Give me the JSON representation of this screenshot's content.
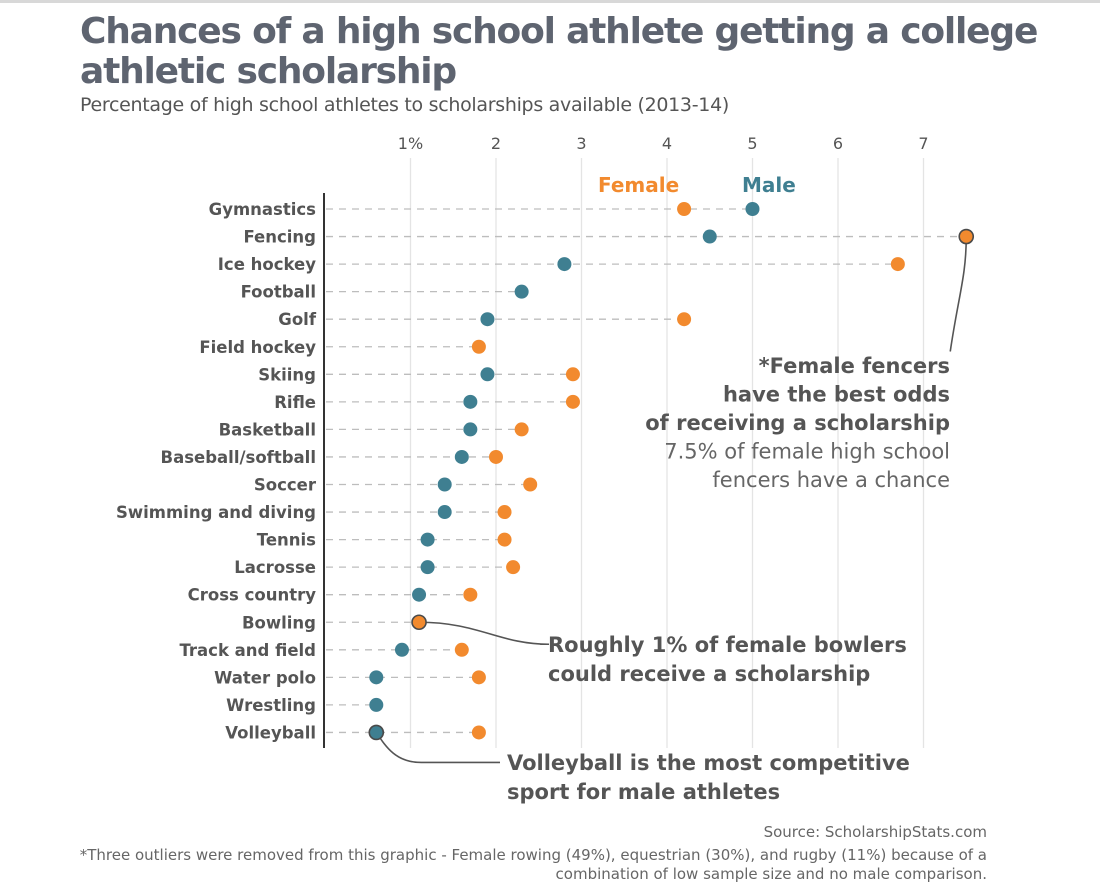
{
  "header": {
    "title": "Chances of a high school athlete getting a college athletic scholarship",
    "subtitle": "Percentage of high school athletes to scholarships available (2013-14)"
  },
  "colors": {
    "female": "#F28A2E",
    "male": "#3F7F91",
    "text": "#555555",
    "grid": "#e4e4e4",
    "dash": "#bdbdbd"
  },
  "chart_data": {
    "type": "scatter",
    "subtype": "dot-plot",
    "title": "Chances of a high school athlete getting a college athletic scholarship",
    "subtitle": "Percentage of high school athletes to scholarships available (2013-14)",
    "xlabel": "",
    "ylabel": "",
    "xlim": [
      0,
      7.6
    ],
    "x_ticks": [
      1,
      2,
      3,
      4,
      5,
      6,
      7
    ],
    "x_tick_labels": [
      "1%",
      "2",
      "3",
      "4",
      "5",
      "6",
      "7"
    ],
    "x_axis_position": "top",
    "grid": true,
    "legend": {
      "placement": "top-center",
      "entries": [
        "Female",
        "Male"
      ]
    },
    "categories": [
      "Gymnastics",
      "Fencing",
      "Ice hockey",
      "Football",
      "Golf",
      "Field hockey",
      "Skiing",
      "Rifle",
      "Basketball",
      "Baseball/softball",
      "Soccer",
      "Swimming and diving",
      "Tennis",
      "Lacrosse",
      "Cross country",
      "Bowling",
      "Track and field",
      "Water polo",
      "Wrestling",
      "Volleyball"
    ],
    "series": [
      {
        "name": "Female",
        "values": [
          4.2,
          7.5,
          6.7,
          null,
          4.2,
          1.8,
          2.9,
          2.9,
          2.3,
          2.0,
          2.4,
          2.1,
          2.1,
          2.2,
          1.7,
          1.1,
          1.6,
          1.8,
          null,
          1.8
        ]
      },
      {
        "name": "Male",
        "values": [
          5.0,
          4.5,
          2.8,
          2.3,
          1.9,
          null,
          1.9,
          1.7,
          1.7,
          1.6,
          1.4,
          1.4,
          1.2,
          1.2,
          1.1,
          null,
          0.9,
          0.6,
          0.6,
          0.6
        ]
      }
    ],
    "highlights": [
      {
        "category": "Fencing",
        "series": "Female"
      },
      {
        "category": "Bowling",
        "series": "Female"
      },
      {
        "category": "Volleyball",
        "series": "Male"
      }
    ],
    "annotations": [
      {
        "target": "Fencing/Female",
        "bold_lines": [
          "*Female fencers",
          "have the best odds",
          "of receiving a scholarship"
        ],
        "light_lines": [
          "7.5% of female high school",
          "fencers have a chance"
        ]
      },
      {
        "target": "Bowling/Female",
        "bold_lines": [
          "Roughly 1% of female bowlers",
          "could receive a scholarship"
        ],
        "light_lines": []
      },
      {
        "target": "Volleyball/Male",
        "bold_lines": [
          "Volleyball is the most competitive",
          "sport for male athletes"
        ],
        "light_lines": []
      }
    ]
  },
  "footer": {
    "source": "Source: ScholarshipStats.com",
    "footnote": "*Three outliers were removed from this graphic - Female rowing (49%), equestrian (30%), and rugby (11%) because of a combination of low sample size and no male comparison."
  }
}
